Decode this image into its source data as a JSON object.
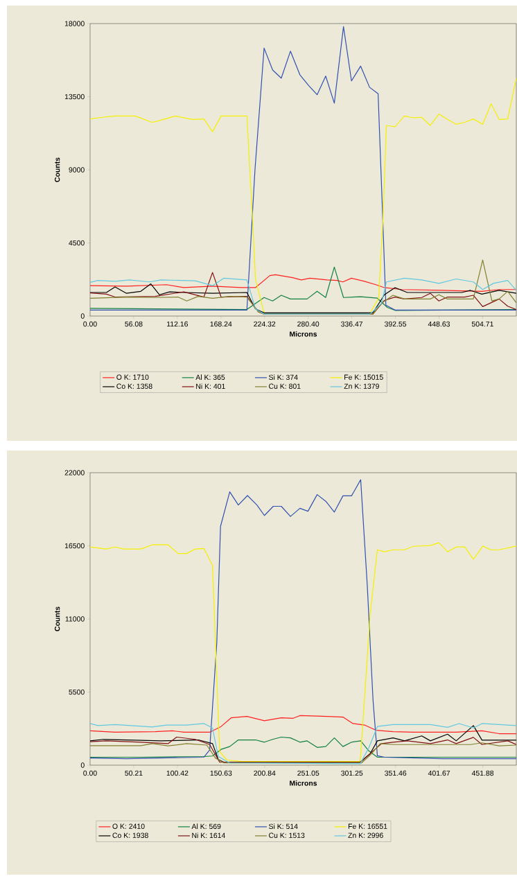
{
  "chart_data": [
    {
      "type": "line",
      "xlabel": "Microns",
      "ylabel": "Counts",
      "xlim": [
        0,
        548
      ],
      "ylim": [
        0,
        18000
      ],
      "xticks": [
        {
          "value": 0,
          "label": "0.00"
        },
        {
          "value": 56.08,
          "label": "56.08"
        },
        {
          "value": 112.16,
          "label": "112.16"
        },
        {
          "value": 168.24,
          "label": "168.24"
        },
        {
          "value": 224.32,
          "label": "224.32"
        },
        {
          "value": 280.4,
          "label": "280.40"
        },
        {
          "value": 336.47,
          "label": "336.47"
        },
        {
          "value": 392.55,
          "label": "392.55"
        },
        {
          "value": 448.63,
          "label": "448.63"
        },
        {
          "value": 504.71,
          "label": "504.71"
        }
      ],
      "yticks": [
        0,
        4500,
        9000,
        13500,
        18000
      ],
      "legend": "bottom",
      "series": [
        {
          "name": "O K: 1710",
          "color": "#ff2020",
          "x": [
            0,
            46.8,
            98.4,
            120.5,
            157.4,
            194.2,
            212.6,
            231.1,
            238.4,
            260.5,
            271.6,
            282.6,
            304.8,
            317.6,
            325,
            336.1,
            352.7,
            367.4,
            378.4,
            400.6,
            452.2,
            503.7,
            525.9,
            548
          ],
          "values": [
            1870,
            1840,
            1930,
            1750,
            1840,
            1750,
            1750,
            2490,
            2540,
            2360,
            2220,
            2330,
            2220,
            2190,
            2100,
            2330,
            2140,
            1930,
            1750,
            1630,
            1580,
            1520,
            1630,
            1630
          ]
        },
        {
          "name": "Al K: 365",
          "color": "#108040",
          "x": [
            0,
            201.6,
            223.7,
            234.7,
            245.8,
            257.6,
            279,
            291.9,
            302.9,
            314,
            325.8,
            347.9,
            369.2,
            382.1,
            392.1,
            548
          ],
          "values": [
            470,
            400,
            1140,
            930,
            1280,
            1050,
            1050,
            1520,
            1140,
            3010,
            1140,
            1190,
            1100,
            530,
            350,
            400
          ]
        },
        {
          "name": "Si K: 374",
          "color": "#3050b0",
          "x": [
            0,
            201.6,
            212,
            223.7,
            234.7,
            245.8,
            257.6,
            269.7,
            280.8,
            291.9,
            302.9,
            314,
            325.8,
            336.1,
            347.9,
            359.3,
            370.3,
            375.5,
            380.3,
            392,
            548
          ],
          "values": [
            370,
            370,
            9000,
            16490,
            15140,
            14640,
            16300,
            14850,
            14200,
            13620,
            14770,
            13100,
            17810,
            14470,
            15380,
            14080,
            13680,
            7000,
            670,
            370,
            370
          ]
        },
        {
          "name": "Fe K: 15015",
          "color": "#f5f000",
          "x": [
            0,
            13.6,
            32,
            57.9,
            80,
            87.3,
            109.4,
            131.6,
            146.3,
            157.4,
            168.4,
            201.6,
            209,
            212.6,
            223.7,
            360,
            371,
            376.6,
            381,
            392.1,
            404.2,
            415.3,
            426.4,
            437.4,
            448.5,
            459.5,
            470.6,
            481.6,
            492.7,
            504.8,
            515.5,
            525.9,
            536.9,
            548
          ],
          "values": [
            12130,
            12220,
            12310,
            12310,
            11920,
            12000,
            12310,
            12100,
            12130,
            11340,
            12310,
            12310,
            5850,
            2300,
            190,
            190,
            1100,
            6000,
            11730,
            11650,
            12310,
            12200,
            12230,
            11730,
            12430,
            12100,
            11800,
            11920,
            12130,
            11800,
            13060,
            12100,
            12130,
            14640
          ]
        },
        {
          "name": "Co K: 1358",
          "color": "#000000",
          "x": [
            0,
            21,
            32.1,
            46.8,
            65.2,
            78.1,
            89.2,
            102.1,
            120.5,
            157.4,
            201.6,
            212.6,
            223.7,
            363.7,
            378.4,
            392.1,
            407.9,
            477.9,
            489,
            503.7,
            525.9,
            548
          ],
          "values": [
            1450,
            1450,
            1790,
            1400,
            1520,
            1980,
            1310,
            1490,
            1450,
            1400,
            1450,
            440,
            200,
            200,
            1310,
            1750,
            1450,
            1450,
            1580,
            1350,
            1580,
            1400
          ]
        },
        {
          "name": "Ni K: 401",
          "color": "#801010",
          "x": [
            0,
            21,
            32.1,
            83.6,
            120.5,
            146.3,
            157.4,
            168.4,
            201.6,
            216.3,
            223.7,
            363.7,
            378.4,
            392.1,
            404.2,
            426.4,
            437.4,
            448.5,
            459.5,
            481.6,
            492.7,
            504.8,
            525.9,
            536.9,
            548
          ],
          "values": [
            1420,
            1350,
            1170,
            1210,
            1490,
            1170,
            2680,
            1170,
            1210,
            260,
            120,
            120,
            960,
            1170,
            1050,
            1140,
            1400,
            930,
            1170,
            1170,
            1280,
            580,
            1050,
            610,
            400
          ]
        },
        {
          "name": "Cu K: 801",
          "color": "#808030",
          "x": [
            0,
            46.8,
            83.6,
            113.1,
            124.2,
            138.9,
            157.4,
            179.5,
            201.6,
            216.3,
            223.7,
            363.7,
            374.8,
            389.5,
            404.2,
            437.4,
            448.5,
            459.5,
            492.7,
            504.8,
            516.6,
            525.9,
            536.9,
            548
          ],
          "values": [
            1090,
            1170,
            1140,
            1170,
            930,
            1210,
            1090,
            1210,
            1170,
            260,
            120,
            120,
            790,
            1280,
            1050,
            1050,
            1310,
            1050,
            1050,
            3450,
            930,
            1050,
            1520,
            820
          ]
        },
        {
          "name": "Zn K: 1379",
          "color": "#60c8e0",
          "x": [
            0,
            9.9,
            32.1,
            50.5,
            76.3,
            91,
            135.2,
            157.4,
            172.1,
            201.6,
            212.6,
            223.7,
            360,
            374.8,
            381,
            404.2,
            426.4,
            448.5,
            470.6,
            492.7,
            504.8,
            518.5,
            536.9,
            548
          ],
          "values": [
            2070,
            2190,
            2140,
            2220,
            2100,
            2220,
            2170,
            1870,
            2330,
            2220,
            440,
            120,
            120,
            790,
            2100,
            2330,
            2220,
            2010,
            2280,
            2100,
            1630,
            2010,
            2190,
            1580
          ]
        }
      ]
    },
    {
      "type": "line",
      "xlabel": "Microns",
      "ylabel": "Counts",
      "xlim": [
        0,
        490.5
      ],
      "ylim": [
        0,
        22000
      ],
      "xticks": [
        {
          "value": 0,
          "label": "0.00"
        },
        {
          "value": 50.21,
          "label": "50.21"
        },
        {
          "value": 100.42,
          "label": "100.42"
        },
        {
          "value": 150.63,
          "label": "150.63"
        },
        {
          "value": 200.84,
          "label": "200.84"
        },
        {
          "value": 251.05,
          "label": "251.05"
        },
        {
          "value": 301.25,
          "label": "301.25"
        },
        {
          "value": 351.46,
          "label": "351.46"
        },
        {
          "value": 401.67,
          "label": "401.67"
        },
        {
          "value": 451.88,
          "label": "451.88"
        }
      ],
      "yticks": [
        0,
        5500,
        11000,
        16500,
        22000
      ],
      "legend": "bottom",
      "series": [
        {
          "name": "O K: 2410",
          "color": "#ff2020",
          "x": [
            0,
            28.7,
            74.9,
            94.7,
            107.9,
            137.6,
            150.8,
            162.3,
            180.5,
            200.6,
            220,
            233.2,
            241.5,
            272.8,
            291,
            302.5,
            315.7,
            328.9,
            348.7,
            371.8,
            421.3,
            451,
            470.8,
            490.5
          ],
          "values": [
            2590,
            2480,
            2520,
            2590,
            2480,
            2480,
            2910,
            3560,
            3670,
            3340,
            3560,
            3520,
            3730,
            3670,
            3620,
            3130,
            3020,
            2630,
            2520,
            2480,
            2480,
            2590,
            2370,
            2370
          ]
        },
        {
          "name": "Al K: 569",
          "color": "#108040",
          "x": [
            0,
            58.4,
            131,
            140.9,
            150.8,
            160.7,
            170.6,
            190.4,
            200.6,
            210.1,
            220,
            230.6,
            241.5,
            249.7,
            261.3,
            271.2,
            281.1,
            291,
            300.9,
            311.4,
            320.7,
            330.6,
            490.5
          ],
          "values": [
            600,
            600,
            650,
            690,
            1190,
            1400,
            1900,
            1900,
            1730,
            1940,
            2110,
            2050,
            1730,
            1830,
            1340,
            1400,
            2050,
            1400,
            1730,
            1830,
            1080,
            600,
            600
          ]
        },
        {
          "name": "Si K: 514",
          "color": "#3050b0",
          "x": [
            0,
            41.9,
            131,
            137.6,
            145.8,
            150.1,
            160.7,
            170.6,
            181.1,
            192,
            200.6,
            210.8,
            220,
            230.6,
            241.5,
            250.7,
            261.3,
            271.2,
            281.1,
            291,
            300.9,
            311.4,
            319,
            325.6,
            330.6,
            338.8,
            404.8,
            490.5
          ],
          "values": [
            540,
            490,
            600,
            1140,
            9200,
            17960,
            20560,
            19570,
            20280,
            19570,
            18780,
            19470,
            19470,
            18710,
            19320,
            19100,
            20350,
            19850,
            19040,
            20260,
            20260,
            21470,
            13510,
            4900,
            710,
            600,
            490,
            490
          ]
        },
        {
          "name": "Fe K: 16551",
          "color": "#f5f000",
          "x": [
            0,
            18.8,
            28.7,
            38.6,
            58.4,
            71.6,
            89.7,
            101.3,
            111.2,
            121.1,
            131,
            140.9,
            144.2,
            149.1,
            157.4,
            173.9,
            310.8,
            315.7,
            322.3,
            330.6,
            338.8,
            348.7,
            361.9,
            371.8,
            391.6,
            401.5,
            411.4,
            421.3,
            431.2,
            441.1,
            452,
            460.9,
            470.8,
            490.5
          ],
          "values": [
            16410,
            16260,
            16410,
            16260,
            16260,
            16580,
            16580,
            15920,
            15920,
            16260,
            16300,
            15010,
            9200,
            1030,
            390,
            280,
            280,
            4900,
            11360,
            16200,
            16050,
            16200,
            16200,
            16460,
            16520,
            16730,
            16050,
            16410,
            16410,
            15490,
            16480,
            16200,
            16200,
            16480
          ]
        },
        {
          "name": "Co K: 1938",
          "color": "#000000",
          "x": [
            0,
            15.5,
            41.9,
            81.5,
            124.4,
            140.9,
            147.5,
            154.1,
            310.8,
            322.3,
            330.6,
            348.7,
            361.9,
            381.7,
            391.6,
            411.4,
            421.3,
            441.1,
            451,
            490.5
          ],
          "values": [
            1830,
            1940,
            1900,
            1830,
            1900,
            1620,
            430,
            220,
            220,
            860,
            1830,
            2050,
            1830,
            2200,
            1830,
            2330,
            1830,
            2980,
            1880,
            1880
          ]
        },
        {
          "name": "Ni K: 1614",
          "color": "#801010",
          "x": [
            0,
            18.8,
            58.4,
            89.7,
            99.6,
            121.1,
            137.6,
            149.1,
            310.8,
            324,
            335.5,
            348.7,
            365.2,
            391.6,
            411.4,
            421.3,
            441.1,
            451,
            480.7,
            490.5
          ],
          "values": [
            1770,
            1830,
            1730,
            1620,
            2110,
            1940,
            1550,
            220,
            220,
            970,
            1620,
            1730,
            1830,
            1620,
            1900,
            1620,
            2090,
            1550,
            1830,
            1550
          ]
        },
        {
          "name": "Cu K: 1513",
          "color": "#808030",
          "x": [
            0,
            58.4,
            71.6,
            89.7,
            111.2,
            134.3,
            144.2,
            154.1,
            312.4,
            322.3,
            333.9,
            348.7,
            437.8,
            451,
            470.8,
            490.5
          ],
          "values": [
            1470,
            1470,
            1620,
            1450,
            1620,
            1510,
            540,
            170,
            170,
            750,
            1620,
            1550,
            1550,
            1680,
            1450,
            1510
          ]
        },
        {
          "name": "Zn K: 2996",
          "color": "#60c8e0",
          "x": [
            0,
            8.9,
            28.7,
            71.6,
            88.1,
            111.2,
            131,
            140.9,
            147.5,
            160.7,
            310.8,
            320.7,
            330.6,
            348.7,
            391.6,
            411.4,
            424.6,
            441.1,
            451,
            490.5
          ],
          "values": [
            3130,
            2980,
            3060,
            2870,
            3020,
            3020,
            3130,
            2800,
            650,
            170,
            110,
            1290,
            2910,
            3060,
            3060,
            2850,
            3130,
            2800,
            3130,
            2980
          ]
        }
      ]
    }
  ]
}
